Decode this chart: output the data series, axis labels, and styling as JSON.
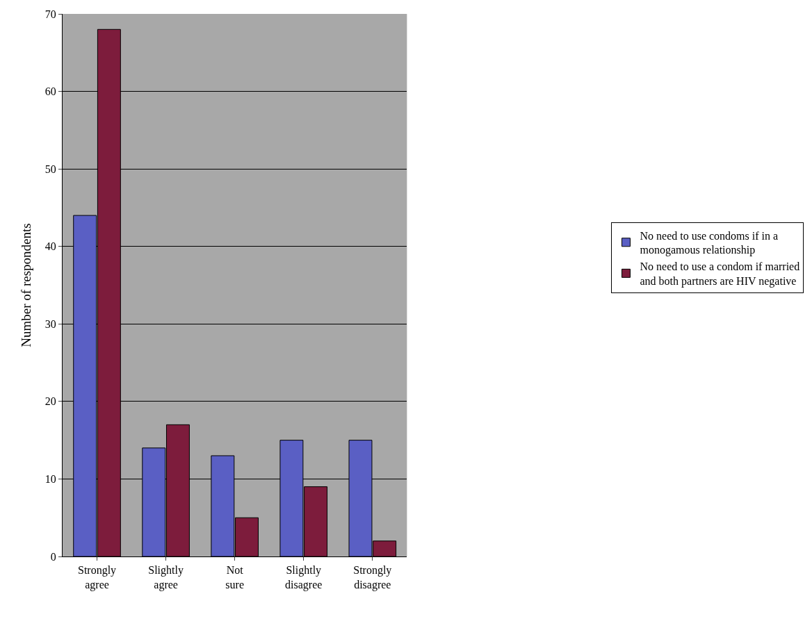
{
  "chart_data": {
    "type": "bar",
    "ylabel": "Number of respondents",
    "categories": [
      "Strongly agree",
      "Slightly agree",
      "Not sure",
      "Slightly disagree",
      "Strongly disagree"
    ],
    "series": [
      {
        "name": "No need to use condoms if in a monogamous relationship",
        "color": "#5a5fc4",
        "values": [
          44,
          14,
          13,
          15,
          15
        ]
      },
      {
        "name": "No need to use a condom if married and both partners are HIV negative",
        "color": "#7d1c3c",
        "values": [
          68,
          17,
          5,
          9,
          2
        ]
      }
    ],
    "ylim": [
      0,
      70
    ],
    "yticks": [
      0,
      10,
      20,
      30,
      40,
      50,
      60,
      70
    ],
    "grid": "y",
    "legend": "right"
  }
}
